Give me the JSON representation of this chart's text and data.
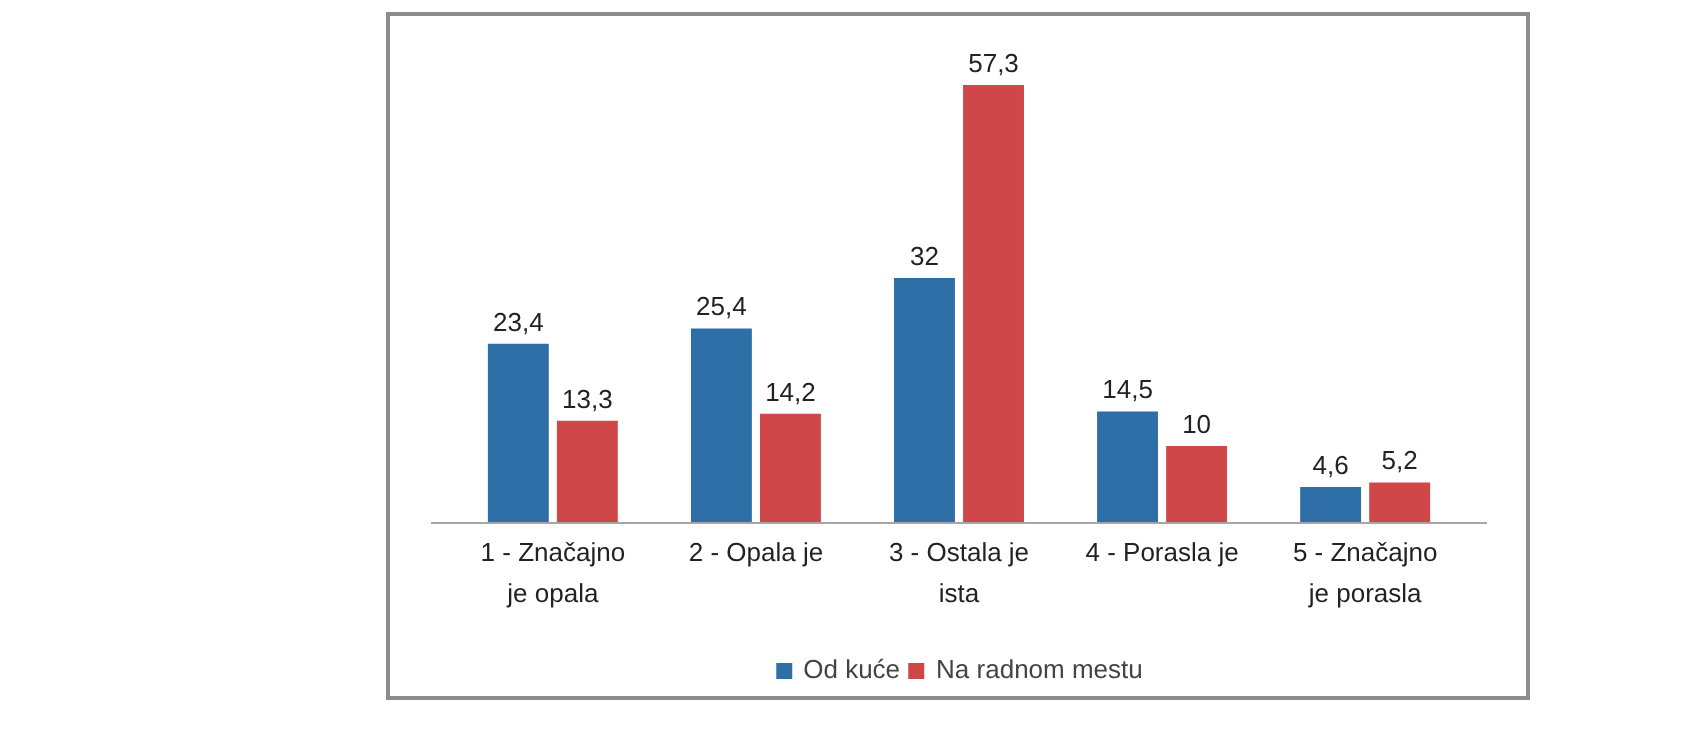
{
  "chart_data": {
    "type": "bar",
    "categories": [
      "1 - Značajno je opala",
      "2 - Opala je",
      "3 - Ostala je ista",
      "4 - Porasla je",
      "5 - Značajno je porasla"
    ],
    "series": [
      {
        "name": "Od kuće",
        "color": "#2f6fa8",
        "values": [
          23.4,
          25.4,
          32,
          14.5,
          4.6
        ],
        "value_labels": [
          "23,4",
          "25,4",
          "32",
          "14,5",
          "4,6"
        ]
      },
      {
        "name": "Na radnom mestu",
        "color": "#d0474a",
        "values": [
          13.3,
          14.2,
          57.3,
          10,
          5.2
        ],
        "value_labels": [
          "13,3",
          "14,2",
          "57,3",
          "10",
          "5,2"
        ]
      }
    ],
    "grid": false,
    "legend": "bottom"
  }
}
